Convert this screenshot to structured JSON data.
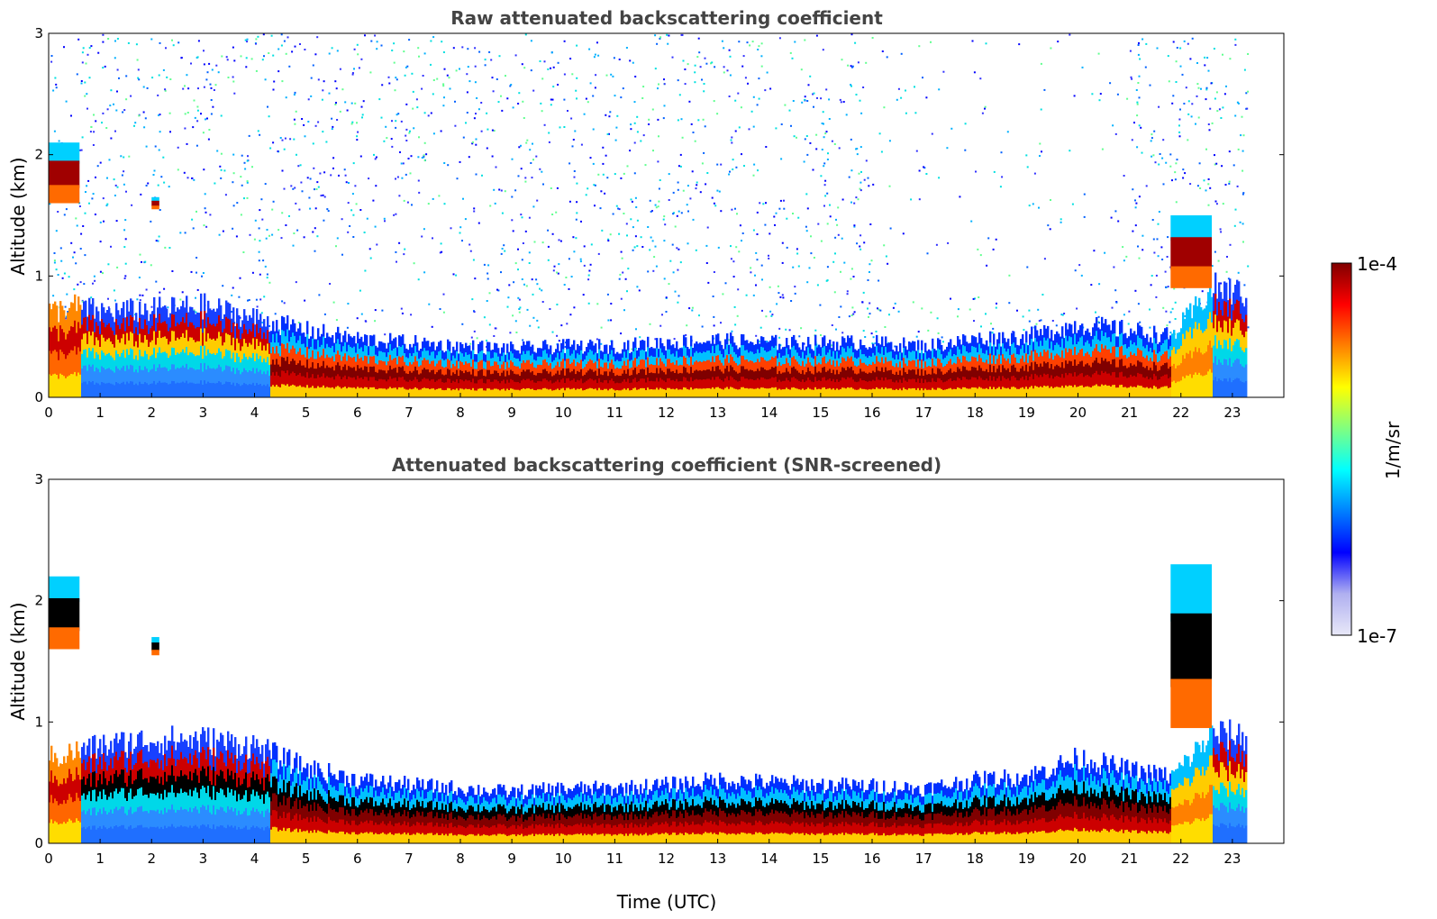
{
  "chart_data": [
    {
      "type": "heatmap",
      "title": "Raw attenuated backscattering coefficient",
      "xlabel": "",
      "ylabel": "Altitude (km)",
      "xlim": [
        0,
        24
      ],
      "ylim": [
        0,
        3
      ],
      "xticks": [
        "0",
        "1",
        "2",
        "3",
        "4",
        "5",
        "6",
        "7",
        "8",
        "9",
        "10",
        "11",
        "12",
        "13",
        "14",
        "15",
        "16",
        "17",
        "18",
        "19",
        "20",
        "21",
        "22",
        "23"
      ],
      "yticks": [
        "0",
        "1",
        "2",
        "3"
      ],
      "data_extent_hours": [
        0,
        23.3
      ],
      "mixing_layer_top_km": [
        [
          0,
          0.7
        ],
        [
          0.5,
          0.75
        ],
        [
          1,
          0.7
        ],
        [
          2,
          0.72
        ],
        [
          3,
          0.75
        ],
        [
          4,
          0.65
        ],
        [
          4.5,
          0.6
        ],
        [
          5,
          0.55
        ],
        [
          6,
          0.48
        ],
        [
          7,
          0.45
        ],
        [
          8,
          0.42
        ],
        [
          9,
          0.4
        ],
        [
          10,
          0.42
        ],
        [
          11,
          0.42
        ],
        [
          12,
          0.45
        ],
        [
          13,
          0.47
        ],
        [
          14,
          0.45
        ],
        [
          15,
          0.45
        ],
        [
          16,
          0.45
        ],
        [
          17,
          0.42
        ],
        [
          18,
          0.48
        ],
        [
          19,
          0.5
        ],
        [
          20,
          0.6
        ],
        [
          21,
          0.55
        ],
        [
          21.8,
          0.5
        ],
        [
          22.6,
          0.9
        ],
        [
          23.3,
          0.85
        ]
      ],
      "cloud_layers_km": [
        {
          "start": 0.0,
          "end": 0.6,
          "base": 1.6,
          "top": 2.1
        },
        {
          "start": 2.0,
          "end": 2.15,
          "base": 1.55,
          "top": 1.65
        },
        {
          "start": 21.8,
          "end": 22.6,
          "base": 0.9,
          "top": 1.5
        }
      ],
      "noise": "high"
    },
    {
      "type": "heatmap",
      "title": "Attenuated backscattering coefficient (SNR-screened)",
      "xlabel": "Time (UTC)",
      "ylabel": "Altitude (km)",
      "xlim": [
        0,
        24
      ],
      "ylim": [
        0,
        3
      ],
      "xticks": [
        "0",
        "1",
        "2",
        "3",
        "4",
        "5",
        "6",
        "7",
        "8",
        "9",
        "10",
        "11",
        "12",
        "13",
        "14",
        "15",
        "16",
        "17",
        "18",
        "19",
        "20",
        "21",
        "22",
        "23"
      ],
      "yticks": [
        "0",
        "1",
        "2",
        "3"
      ],
      "data_extent_hours": [
        0,
        23.3
      ],
      "mixing_layer_top_km": [
        [
          0,
          0.7
        ],
        [
          0.5,
          0.75
        ],
        [
          1,
          0.8
        ],
        [
          2,
          0.85
        ],
        [
          3,
          0.85
        ],
        [
          4,
          0.8
        ],
        [
          4.5,
          0.7
        ],
        [
          5,
          0.62
        ],
        [
          6,
          0.52
        ],
        [
          7,
          0.48
        ],
        [
          8,
          0.45
        ],
        [
          9,
          0.42
        ],
        [
          10,
          0.45
        ],
        [
          11,
          0.45
        ],
        [
          12,
          0.48
        ],
        [
          13,
          0.52
        ],
        [
          14,
          0.5
        ],
        [
          15,
          0.48
        ],
        [
          16,
          0.47
        ],
        [
          17,
          0.45
        ],
        [
          18,
          0.52
        ],
        [
          19,
          0.55
        ],
        [
          20,
          0.7
        ],
        [
          21,
          0.6
        ],
        [
          21.8,
          0.55
        ],
        [
          22.6,
          0.9
        ],
        [
          23.3,
          0.88
        ]
      ],
      "cloud_layers_km": [
        {
          "start": 0.0,
          "end": 0.6,
          "base": 1.6,
          "top": 2.2
        },
        {
          "start": 2.0,
          "end": 2.15,
          "base": 1.55,
          "top": 1.7
        },
        {
          "start": 21.8,
          "end": 22.6,
          "base": 0.95,
          "top": 2.3
        }
      ],
      "noise": "none"
    }
  ],
  "colorbar": {
    "max_label": "1e-4",
    "min_label": "1e-7",
    "unit_label": "1/m/sr",
    "colors": [
      "#e8e8f8",
      "#b0b0f0",
      "#0000ff",
      "#0080ff",
      "#00ffff",
      "#80ff80",
      "#ffff00",
      "#ff8000",
      "#ff0000",
      "#800000"
    ]
  }
}
